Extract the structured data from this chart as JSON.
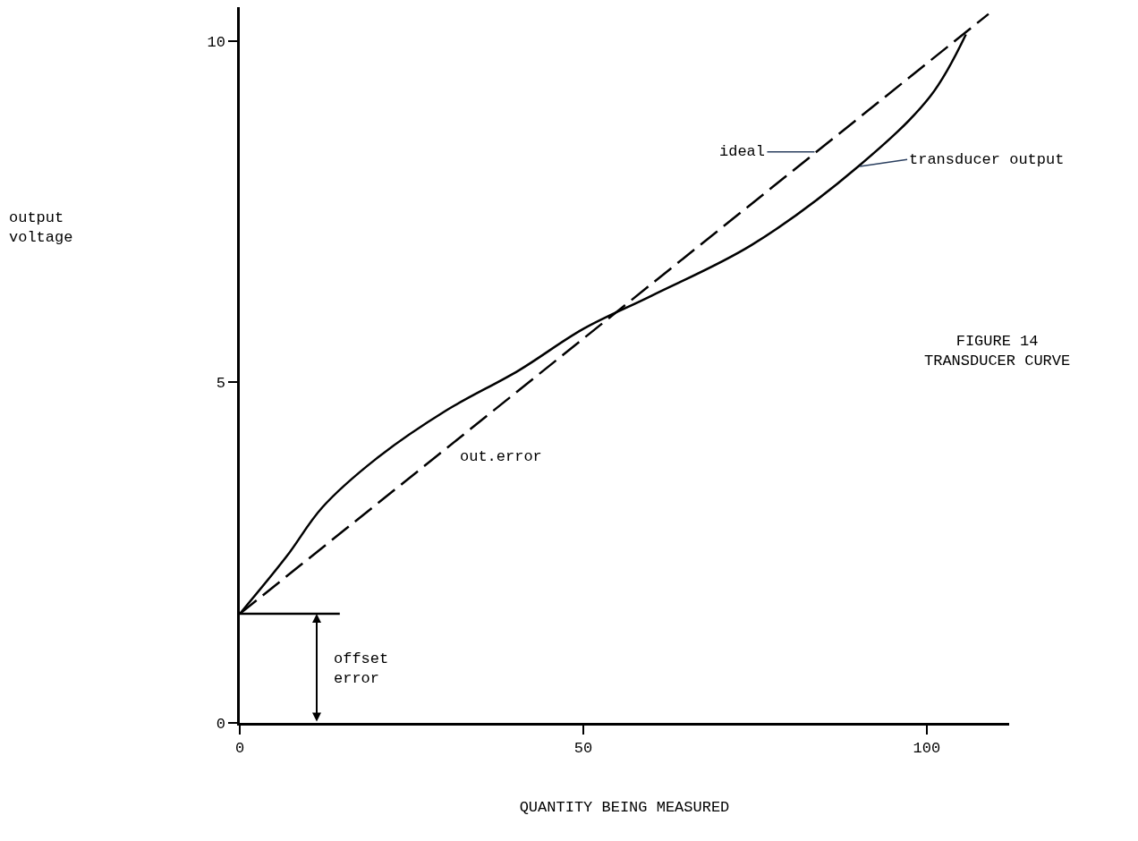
{
  "chart_data": {
    "type": "line",
    "xlabel": "QUANTITY BEING MEASURED",
    "series": [
      {
        "name": "ideal",
        "color": "#000000",
        "line_style": "dashed",
        "x": [
          0,
          109
        ],
        "values": [
          1.6,
          10.4
        ]
      },
      {
        "name": "transducer output",
        "color": "#000000",
        "line_style": "solid",
        "x": [
          0,
          6.8,
          12,
          19.8,
          30,
          40.6,
          50,
          60,
          74.5,
          90,
          100.5,
          105.7
        ],
        "values": [
          1.6,
          2.44,
          3.16,
          3.87,
          4.58,
          5.17,
          5.78,
          6.27,
          7.01,
          8.16,
          9.19,
          10.1
        ]
      }
    ],
    "ref_lines": [
      {
        "axis": "y",
        "value": 1.6,
        "label": "offset error",
        "color": "#000000"
      }
    ],
    "annotations": [
      "output voltage",
      "out.error",
      "FIGURE 14",
      "TRANSDUCER CURVE"
    ],
    "xlim": [
      0,
      112
    ],
    "ylim": [
      0,
      10.5
    ],
    "xticks": [
      0,
      50,
      100
    ],
    "yticks": [
      0,
      5,
      10
    ],
    "legend": false,
    "marker": "none"
  }
}
